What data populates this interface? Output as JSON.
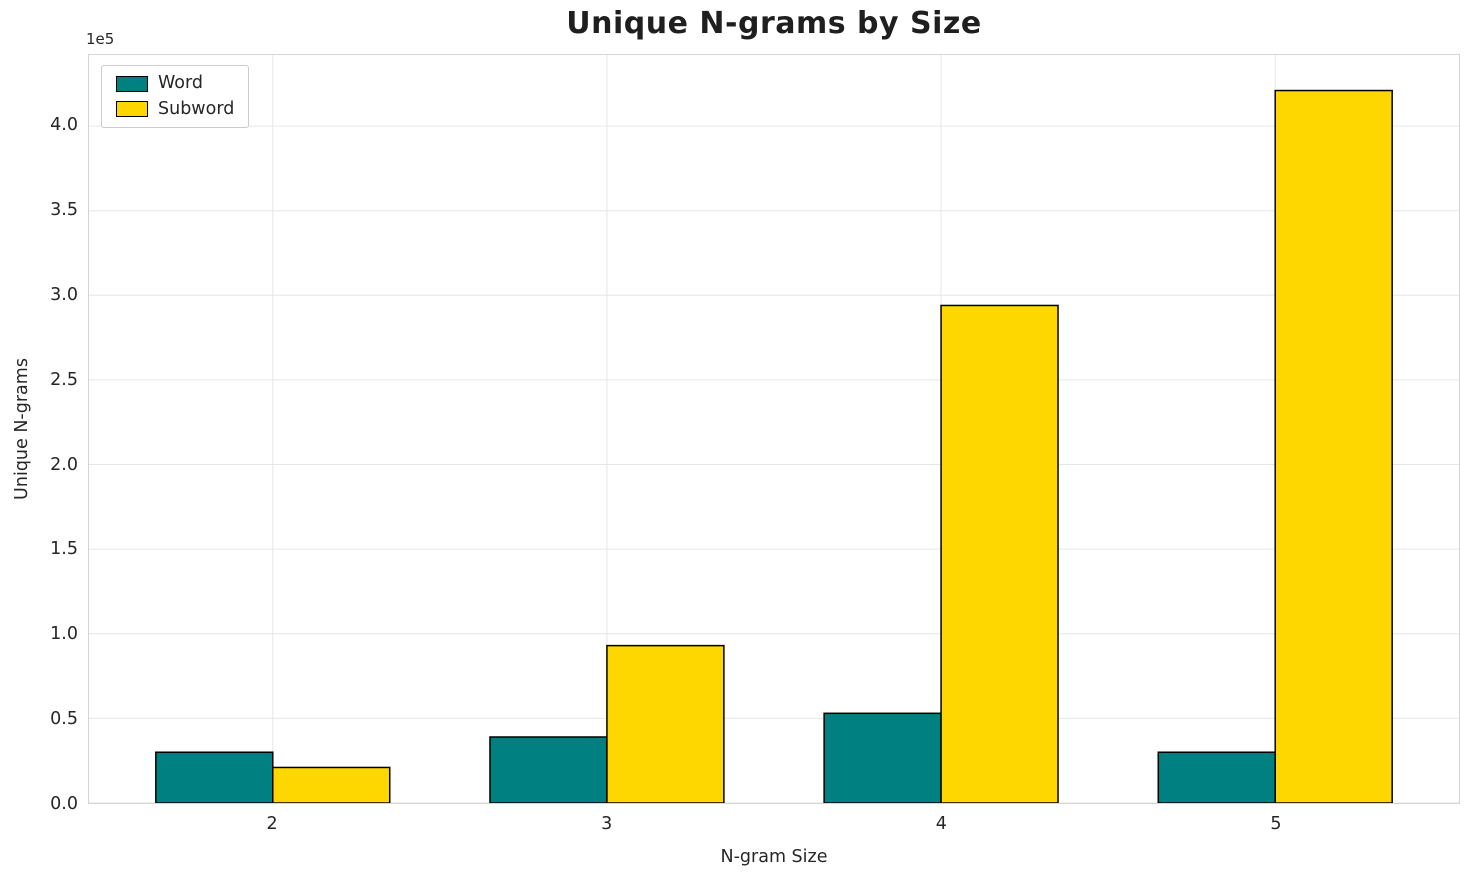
{
  "chart_data": {
    "type": "bar",
    "title": "Unique N-grams by Size",
    "xlabel": "N-gram Size",
    "ylabel": "Unique N-grams",
    "y_offset_label": "1e5",
    "categories": [
      "2",
      "3",
      "4",
      "5"
    ],
    "series": [
      {
        "name": "Word",
        "color": "#008080",
        "values": [
          30000,
          39000,
          53000,
          30000
        ]
      },
      {
        "name": "Subword",
        "color": "#FFD700",
        "values": [
          21000,
          93000,
          294000,
          421000
        ]
      }
    ],
    "bar_edge_color": "#000000",
    "bar_width": 0.35,
    "ylim": [
      0,
      442000
    ],
    "yticks": [
      0,
      50000,
      100000,
      150000,
      200000,
      250000,
      300000,
      350000,
      400000
    ],
    "ytick_labels": [
      "0.0",
      "0.5",
      "1.0",
      "1.5",
      "2.0",
      "2.5",
      "3.0",
      "3.5",
      "4.0"
    ],
    "grid": true,
    "legend_position": "upper left"
  }
}
